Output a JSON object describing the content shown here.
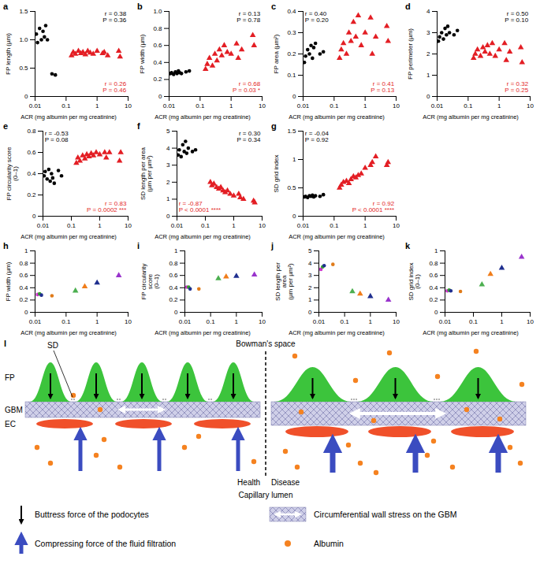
{
  "chart_data": [
    {
      "type": "scatter",
      "panel": "a",
      "xlabel": "ACR (mg albumin per mg creatinine)",
      "ylabel": "FP length (µm)",
      "log": "x",
      "grid": false,
      "xlim": [
        0.01,
        10
      ],
      "xticks": [
        0.01,
        0.1,
        1,
        10
      ],
      "ylim": [
        0,
        1.5
      ],
      "yticks": [
        0,
        0.5,
        {
          "value": 1,
          "label": "1.0"
        },
        1.5
      ],
      "series": [
        {
          "color": "#000000",
          "marker": "circle",
          "x": [
            0.011,
            0.012,
            0.014,
            0.016,
            0.018,
            0.02,
            0.022,
            0.025,
            0.035,
            0.045
          ],
          "values": [
            1.1,
            0.95,
            1.2,
            1.0,
            1.15,
            1.05,
            1.25,
            1.0,
            0.4,
            0.38
          ]
        },
        {
          "color": "#e31e24",
          "marker": "triangle",
          "x": [
            0.15,
            0.17,
            0.2,
            0.25,
            0.3,
            0.35,
            0.42,
            0.5,
            0.6,
            0.75,
            1,
            1.5,
            1.7,
            2.2,
            5,
            5.5
          ],
          "values": [
            0.72,
            0.78,
            0.75,
            0.8,
            0.76,
            0.78,
            0.74,
            0.8,
            0.77,
            0.75,
            0.8,
            0.76,
            0.78,
            0.72,
            0.8,
            0.7
          ]
        }
      ],
      "annotations": [
        {
          "lines": [
            "r = 0.38",
            "P = 0.36"
          ],
          "color": "#000000"
        },
        {
          "lines": [
            "r = 0.26",
            "P = 0.46"
          ],
          "color": "#e31e24"
        }
      ]
    },
    {
      "type": "scatter",
      "panel": "b",
      "xlabel": "ACR (mg albumin per mg creatinine)",
      "ylabel": "FP width (µm)",
      "log": "x",
      "grid": false,
      "xlim": [
        0.01,
        10
      ],
      "xticks": [
        0.01,
        0.1,
        1,
        10
      ],
      "ylim": [
        0,
        1
      ],
      "yticks": [
        0,
        0.2,
        0.4,
        0.6,
        0.8,
        {
          "value": 1,
          "label": "1.0"
        }
      ],
      "series": [
        {
          "color": "#000000",
          "marker": "circle",
          "x": [
            0.011,
            0.012,
            0.014,
            0.016,
            0.018,
            0.02,
            0.022,
            0.025,
            0.035,
            0.045
          ],
          "values": [
            0.27,
            0.28,
            0.26,
            0.29,
            0.27,
            0.3,
            0.28,
            0.27,
            0.29,
            0.3
          ]
        },
        {
          "color": "#e31e24",
          "marker": "triangle",
          "x": [
            0.15,
            0.17,
            0.2,
            0.25,
            0.3,
            0.35,
            0.42,
            0.5,
            0.6,
            0.75,
            1,
            1.5,
            1.7,
            2.2,
            5,
            5.5
          ],
          "values": [
            0.32,
            0.38,
            0.45,
            0.36,
            0.5,
            0.42,
            0.55,
            0.48,
            0.6,
            0.52,
            0.5,
            0.62,
            0.45,
            0.55,
            0.72,
            0.6
          ]
        }
      ],
      "annotations": [
        {
          "lines": [
            "r = 0.13",
            "P = 0.78"
          ],
          "color": "#000000"
        },
        {
          "lines": [
            "r = 0.68",
            "P = 0.03 *"
          ],
          "color": "#e31e24"
        }
      ]
    },
    {
      "type": "scatter",
      "panel": "c",
      "xlabel": "ACR (mg albumin per mg creatinine)",
      "ylabel": "FP area (µm²)",
      "log": "x",
      "grid": false,
      "xlim": [
        0.01,
        10
      ],
      "xticks": [
        0.01,
        0.1,
        1,
        10
      ],
      "ylim": [
        0,
        0.4
      ],
      "yticks": [
        0,
        0.1,
        0.2,
        0.3,
        0.4
      ],
      "series": [
        {
          "color": "#000000",
          "marker": "circle",
          "x": [
            0.011,
            0.012,
            0.014,
            0.016,
            0.018,
            0.02,
            0.022,
            0.025,
            0.035,
            0.045
          ],
          "values": [
            0.16,
            0.19,
            0.22,
            0.2,
            0.24,
            0.18,
            0.23,
            0.25,
            0.2,
            0.21
          ]
        },
        {
          "color": "#e31e24",
          "marker": "triangle",
          "x": [
            0.15,
            0.17,
            0.2,
            0.25,
            0.3,
            0.35,
            0.42,
            0.5,
            0.6,
            0.75,
            1,
            1.5,
            1.7,
            2.2,
            5,
            5.5
          ],
          "values": [
            0.18,
            0.22,
            0.25,
            0.2,
            0.3,
            0.26,
            0.35,
            0.28,
            0.38,
            0.24,
            0.3,
            0.37,
            0.2,
            0.28,
            0.33,
            0.26
          ]
        }
      ],
      "annotations": [
        {
          "lines": [
            "r = 0.40",
            "P = 0.20"
          ],
          "color": "#000000"
        },
        {
          "lines": [
            "r = 0.41",
            "P = 0.13"
          ],
          "color": "#e31e24"
        }
      ]
    },
    {
      "type": "scatter",
      "panel": "d",
      "xlabel": "ACR (mg albumin per mg creatinine)",
      "ylabel": "FP perimeter (µm)",
      "log": "x",
      "grid": false,
      "xlim": [
        0.01,
        10
      ],
      "xticks": [
        0.01,
        0.1,
        1,
        10
      ],
      "ylim": [
        0,
        4
      ],
      "yticks": [
        0,
        1,
        2,
        3,
        4
      ],
      "series": [
        {
          "color": "#000000",
          "marker": "circle",
          "x": [
            0.011,
            0.012,
            0.014,
            0.016,
            0.018,
            0.02,
            0.022,
            0.025,
            0.035,
            0.045
          ],
          "values": [
            2.6,
            2.8,
            3.0,
            2.7,
            3.2,
            2.9,
            3.3,
            3.0,
            2.9,
            3.1
          ]
        },
        {
          "color": "#e31e24",
          "marker": "triangle",
          "x": [
            0.15,
            0.17,
            0.2,
            0.25,
            0.3,
            0.35,
            0.42,
            0.5,
            0.6,
            0.75,
            1,
            1.5,
            1.7,
            2.2,
            5,
            5.5
          ],
          "values": [
            1.8,
            2.0,
            2.2,
            1.9,
            2.3,
            2.1,
            2.4,
            2.0,
            2.5,
            1.9,
            2.2,
            2.5,
            1.7,
            2.1,
            2.3,
            1.6
          ]
        }
      ],
      "annotations": [
        {
          "lines": [
            "r = 0.50",
            "P = 0.10"
          ],
          "color": "#000000"
        },
        {
          "lines": [
            "r = 0.32",
            "P = 0.25"
          ],
          "color": "#e31e24"
        }
      ]
    },
    {
      "type": "scatter",
      "panel": "e",
      "xlabel": "ACR (mg albumin per mg creatinine)",
      "ylabel": "FP circularity score (0–1)",
      "log": "x",
      "grid": false,
      "xlim": [
        0.01,
        10
      ],
      "xticks": [
        0.01,
        0.1,
        1,
        10
      ],
      "ylim": [
        0,
        0.8
      ],
      "yticks": [
        0,
        0.2,
        0.4,
        0.6,
        0.8
      ],
      "series": [
        {
          "color": "#000000",
          "marker": "circle",
          "x": [
            0.011,
            0.012,
            0.014,
            0.016,
            0.018,
            0.02,
            0.022,
            0.025,
            0.035,
            0.045
          ],
          "values": [
            0.38,
            0.42,
            0.35,
            0.44,
            0.33,
            0.4,
            0.36,
            0.31,
            0.43,
            0.38
          ]
        },
        {
          "color": "#e31e24",
          "marker": "triangle",
          "x": [
            0.15,
            0.17,
            0.2,
            0.25,
            0.3,
            0.35,
            0.42,
            0.5,
            0.6,
            0.75,
            1,
            1.5,
            1.7,
            2.2,
            5,
            5.5
          ],
          "values": [
            0.5,
            0.55,
            0.52,
            0.57,
            0.54,
            0.58,
            0.56,
            0.59,
            0.57,
            0.6,
            0.58,
            0.6,
            0.55,
            0.6,
            0.52,
            0.6
          ]
        }
      ],
      "annotations": [
        {
          "lines": [
            "r = -0.53",
            "P = 0.08"
          ],
          "color": "#000000"
        },
        {
          "lines": [
            "r = 0.83",
            "P = 0.0002 ***"
          ],
          "color": "#e31e24"
        }
      ]
    },
    {
      "type": "scatter",
      "panel": "f",
      "xlabel": "ACR (mg albumin per mg creatinine)",
      "ylabel": "SD length per area (µm per µm²)",
      "log": "x",
      "grid": false,
      "xlim": [
        0.01,
        10
      ],
      "xticks": [
        0.01,
        0.1,
        1,
        10
      ],
      "ylim": [
        0,
        5
      ],
      "yticks": [
        0,
        1,
        2,
        3,
        4,
        5
      ],
      "series": [
        {
          "color": "#000000",
          "marker": "circle",
          "x": [
            0.011,
            0.012,
            0.014,
            0.016,
            0.018,
            0.02,
            0.022,
            0.025,
            0.035,
            0.045
          ],
          "values": [
            3.6,
            3.9,
            3.5,
            4.2,
            3.8,
            4.4,
            3.7,
            4.0,
            3.8,
            3.9
          ]
        },
        {
          "color": "#e31e24",
          "marker": "triangle",
          "x": [
            0.15,
            0.17,
            0.2,
            0.25,
            0.3,
            0.35,
            0.42,
            0.5,
            0.6,
            0.75,
            1,
            1.5,
            1.7,
            2.2,
            5,
            5.5
          ],
          "values": [
            2.0,
            1.8,
            1.9,
            1.7,
            1.6,
            1.7,
            1.5,
            1.4,
            1.5,
            1.3,
            1.2,
            1.3,
            1.1,
            1.0,
            0.9,
            0.8
          ]
        }
      ],
      "annotations": [
        {
          "lines": [
            "r = 0.30",
            "P = 0.34"
          ],
          "color": "#000000"
        },
        {
          "lines": [
            "r = -0.87",
            "P < 0.0001 ****"
          ],
          "color": "#e31e24"
        }
      ]
    },
    {
      "type": "scatter",
      "panel": "g",
      "xlabel": "ACR (mg albumin per mg creatinine)",
      "ylabel": "SD grid index",
      "log": "x",
      "grid": false,
      "xlim": [
        0.01,
        10
      ],
      "xticks": [
        0.01,
        0.1,
        1,
        10
      ],
      "ylim": [
        0,
        1.5
      ],
      "yticks": [
        0,
        0.5,
        1,
        1.5
      ],
      "series": [
        {
          "color": "#000000",
          "marker": "circle",
          "x": [
            0.011,
            0.012,
            0.014,
            0.016,
            0.018,
            0.02,
            0.022,
            0.025,
            0.035,
            0.045
          ],
          "values": [
            0.34,
            0.35,
            0.33,
            0.36,
            0.35,
            0.37,
            0.34,
            0.36,
            0.35,
            0.38
          ]
        },
        {
          "color": "#e31e24",
          "marker": "triangle",
          "x": [
            0.15,
            0.17,
            0.2,
            0.25,
            0.3,
            0.35,
            0.42,
            0.5,
            0.6,
            0.75,
            1,
            1.5,
            1.7,
            2.2,
            5,
            5.5
          ],
          "values": [
            0.5,
            0.55,
            0.6,
            0.62,
            0.58,
            0.65,
            0.7,
            0.68,
            0.72,
            0.75,
            0.85,
            0.9,
            0.95,
            1.05,
            0.9,
            0.95
          ]
        }
      ],
      "annotations": [
        {
          "lines": [
            "r = -0.04",
            "P = 0.92"
          ],
          "color": "#000000"
        },
        {
          "lines": [
            "r = 0.92",
            "P < 0.0001 ****"
          ],
          "color": "#e31e24"
        }
      ]
    },
    {
      "type": "scatter",
      "panel": "h",
      "xlabel": "ACR (mg albumin per mg creatinine)",
      "ylabel": "FP width (µm)",
      "log": "x",
      "grid": false,
      "xlim": [
        0.01,
        10
      ],
      "xticks": [
        0.01,
        0.1,
        1,
        10
      ],
      "ylim": [
        0,
        1
      ],
      "yticks": [
        0,
        0.2,
        0.4,
        0.6,
        0.8,
        1
      ],
      "series": [
        {
          "colors": [
            "#cc33cc",
            "#33a02c",
            "#1f2f8f",
            "#e07b1a"
          ],
          "marker": "circle",
          "x": [
            0.012,
            0.014,
            0.016,
            0.035
          ],
          "values": [
            0.29,
            0.3,
            0.28,
            0.27
          ]
        },
        {
          "colors": [
            "#4caf50",
            "#f07d1a",
            "#1f2f8f",
            "#9933cc"
          ],
          "marker": "triangle",
          "x": [
            0.2,
            0.4,
            1,
            5
          ],
          "values": [
            0.35,
            0.42,
            0.48,
            0.6
          ]
        }
      ]
    },
    {
      "type": "scatter",
      "panel": "i",
      "xlabel": "ACR (mg albumin per mg creatinine)",
      "ylabel": "FP circularity score (0–1)",
      "log": "x",
      "grid": false,
      "xlim": [
        0.01,
        10
      ],
      "xticks": [
        0.01,
        0.1,
        1,
        10
      ],
      "ylim": [
        0,
        1
      ],
      "yticks": [
        0,
        0.2,
        0.4,
        0.6,
        0.8,
        1
      ],
      "series": [
        {
          "colors": [
            "#cc33cc",
            "#33a02c",
            "#1f2f8f",
            "#e07b1a"
          ],
          "marker": "circle",
          "x": [
            0.012,
            0.014,
            0.016,
            0.035
          ],
          "values": [
            0.41,
            0.41,
            0.38,
            0.38
          ]
        },
        {
          "colors": [
            "#4caf50",
            "#f07d1a",
            "#1f2f8f",
            "#9933cc"
          ],
          "marker": "triangle",
          "x": [
            0.2,
            0.4,
            1,
            5
          ],
          "values": [
            0.55,
            0.58,
            0.59,
            0.61
          ]
        }
      ]
    },
    {
      "type": "scatter",
      "panel": "j",
      "xlabel": "ACR (mg albumin per mg creatinine)",
      "ylabel": "SD length per area (µm per µm²)",
      "log": "x",
      "grid": false,
      "xlim": [
        0.01,
        10
      ],
      "xticks": [
        0.01,
        0.1,
        1,
        10
      ],
      "ylim": [
        0,
        5
      ],
      "yticks": [
        0,
        1,
        2,
        3,
        4,
        5
      ],
      "series": [
        {
          "colors": [
            "#cc33cc",
            "#33a02c",
            "#1f2f8f",
            "#e07b1a"
          ],
          "marker": "circle",
          "x": [
            0.012,
            0.014,
            0.016,
            0.035
          ],
          "values": [
            3.5,
            3.7,
            3.8,
            3.9
          ]
        },
        {
          "colors": [
            "#4caf50",
            "#f07d1a",
            "#1f2f8f",
            "#9933cc"
          ],
          "marker": "triangle",
          "x": [
            0.2,
            0.4,
            1,
            5
          ],
          "values": [
            1.7,
            1.5,
            1.3,
            1.0
          ]
        }
      ]
    },
    {
      "type": "scatter",
      "panel": "k",
      "xlabel": "ACR (mg albumin per mg creatinine)",
      "ylabel": "SD grid index (0–1)",
      "log": "x",
      "grid": false,
      "xlim": [
        0.01,
        10
      ],
      "xticks": [
        0.01,
        0.1,
        1,
        10
      ],
      "ylim": [
        0,
        1
      ],
      "yticks": [
        0,
        0.2,
        0.4,
        0.6,
        0.8,
        1
      ],
      "series": [
        {
          "colors": [
            "#cc33cc",
            "#33a02c",
            "#1f2f8f",
            "#e07b1a"
          ],
          "marker": "circle",
          "x": [
            0.012,
            0.014,
            0.016,
            0.035
          ],
          "values": [
            0.35,
            0.36,
            0.35,
            0.34
          ]
        },
        {
          "colors": [
            "#4caf50",
            "#f07d1a",
            "#1f2f8f",
            "#9933cc"
          ],
          "marker": "triangle",
          "x": [
            0.2,
            0.4,
            1,
            5
          ],
          "values": [
            0.45,
            0.62,
            0.72,
            0.9
          ]
        }
      ]
    }
  ],
  "diagram": {
    "panel": "l",
    "bowman": "Bowman's space",
    "sd": "SD",
    "fp": "FP",
    "gbm": "GBM",
    "ec": "EC",
    "health": "Health",
    "disease": "Disease",
    "lumen": "Capillary lumen",
    "legend": {
      "buttress": "Buttress force of the podocytes",
      "compress": "Compressing force of the fluid filtration",
      "stress": "Circumferential wall stress on the GBM",
      "albumin": "Albumin"
    }
  }
}
